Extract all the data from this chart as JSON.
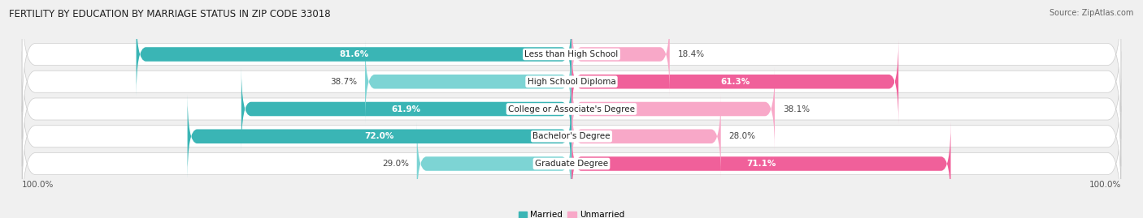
{
  "title": "FERTILITY BY EDUCATION BY MARRIAGE STATUS IN ZIP CODE 33018",
  "source": "Source: ZipAtlas.com",
  "categories": [
    "Less than High School",
    "High School Diploma",
    "College or Associate's Degree",
    "Bachelor's Degree",
    "Graduate Degree"
  ],
  "married": [
    81.6,
    38.7,
    61.9,
    72.0,
    29.0
  ],
  "unmarried": [
    18.4,
    61.3,
    38.1,
    28.0,
    71.1
  ],
  "married_color_dark": "#3ab5b5",
  "married_color_light": "#7dd4d4",
  "unmarried_color_dark": "#f0609a",
  "unmarried_color_light": "#f8a8c8",
  "row_bg_color": "#e8e8e8",
  "background_color": "#f0f0f0",
  "title_fontsize": 8.5,
  "label_fontsize": 7.5,
  "source_fontsize": 7,
  "legend_fontsize": 7.5
}
